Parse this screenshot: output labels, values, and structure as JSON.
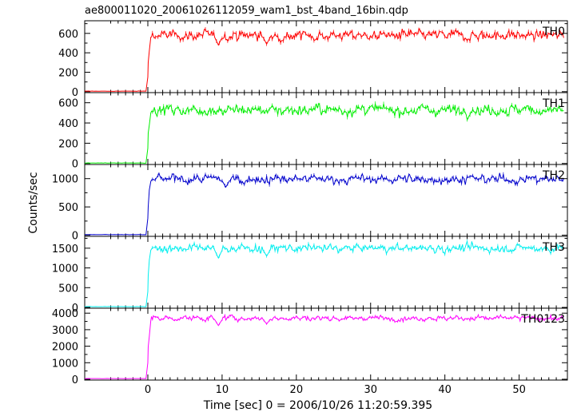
{
  "chart_data": {
    "type": "line",
    "title": "ae800011020_20061026112059_wam1_bst_4band_16bin.qdp",
    "xlabel": "Time [sec] 0 = 2006/10/26 11:20:59.395",
    "ylabel": "Counts/sec",
    "xlim": [
      -8.5,
      56.5
    ],
    "x_ticks": [
      0,
      10,
      20,
      30,
      40,
      50
    ],
    "x_tick_labels": [
      "0",
      "10",
      "20",
      "30",
      "40",
      "50"
    ],
    "grid": false,
    "legend": "none",
    "series": [
      {
        "name": "TH0",
        "color": "#ff0000",
        "ylim": [
          -10,
          730
        ],
        "yticks": [
          0,
          200,
          400,
          600
        ],
        "ytick_labels": [
          "0",
          "200",
          "400",
          "600"
        ],
        "pre_burst_level": 5,
        "rise_points": [
          [
            0.0,
            150
          ],
          [
            0.05,
            300
          ],
          [
            0.2,
            420
          ],
          [
            0.4,
            560
          ]
        ],
        "plateau_mean": 580,
        "plateau_noise": 45,
        "dip_points": [
          [
            9.5,
            480
          ],
          [
            16.0,
            490
          ]
        ],
        "sample_points": [
          [
            -5,
            5
          ],
          [
            0,
            5
          ],
          [
            0.5,
            600
          ],
          [
            5,
            600
          ],
          [
            10,
            560
          ],
          [
            15,
            590
          ],
          [
            20,
            610
          ],
          [
            25,
            600
          ],
          [
            30,
            570
          ],
          [
            35,
            590
          ],
          [
            40,
            560
          ],
          [
            45,
            580
          ],
          [
            50,
            570
          ],
          [
            55,
            590
          ]
        ]
      },
      {
        "name": "TH1",
        "color": "#00ee00",
        "ylim": [
          -10,
          700
        ],
        "yticks": [
          0,
          200,
          400,
          600
        ],
        "ytick_labels": [
          "0",
          "200",
          "400",
          "600"
        ],
        "pre_burst_level": 5,
        "rise_points": [
          [
            0.0,
            150
          ],
          [
            0.05,
            300
          ],
          [
            0.2,
            380
          ],
          [
            0.4,
            500
          ]
        ],
        "plateau_mean": 530,
        "plateau_noise": 45,
        "dip_points": [],
        "sample_points": [
          [
            -5,
            5
          ],
          [
            0,
            5
          ],
          [
            0.5,
            550
          ],
          [
            5,
            560
          ],
          [
            10,
            530
          ],
          [
            15,
            540
          ],
          [
            20,
            560
          ],
          [
            25,
            520
          ],
          [
            30,
            540
          ],
          [
            35,
            530
          ],
          [
            40,
            560
          ],
          [
            45,
            520
          ],
          [
            50,
            550
          ],
          [
            55,
            530
          ]
        ]
      },
      {
        "name": "TH2",
        "color": "#0000cc",
        "ylim": [
          -20,
          1250
        ],
        "yticks": [
          0,
          500,
          1000
        ],
        "ytick_labels": [
          "0",
          "500",
          "1000"
        ],
        "pre_burst_level": 10,
        "rise_points": [
          [
            0.0,
            300
          ],
          [
            0.05,
            500
          ],
          [
            0.2,
            800
          ],
          [
            0.4,
            950
          ]
        ],
        "plateau_mean": 990,
        "plateau_noise": 70,
        "dip_points": [
          [
            10.5,
            850
          ]
        ],
        "sample_points": [
          [
            -5,
            10
          ],
          [
            0,
            10
          ],
          [
            0.5,
            1000
          ],
          [
            5,
            1010
          ],
          [
            10,
            950
          ],
          [
            15,
            990
          ],
          [
            20,
            1020
          ],
          [
            25,
            980
          ],
          [
            30,
            1000
          ],
          [
            35,
            970
          ],
          [
            40,
            990
          ],
          [
            45,
            1000
          ],
          [
            50,
            980
          ],
          [
            55,
            1000
          ]
        ]
      },
      {
        "name": "TH3",
        "color": "#00eeee",
        "ylim": [
          -20,
          1800
        ],
        "yticks": [
          0,
          500,
          1000,
          1500
        ],
        "ytick_labels": [
          "0",
          "500",
          "1000",
          "1500"
        ],
        "pre_burst_level": 20,
        "rise_points": [
          [
            0.0,
            400
          ],
          [
            0.05,
            800
          ],
          [
            0.2,
            1200
          ],
          [
            0.4,
            1450
          ]
        ],
        "plateau_mean": 1500,
        "plateau_noise": 90,
        "dip_points": [
          [
            9.5,
            1250
          ],
          [
            16.0,
            1300
          ]
        ],
        "sample_points": [
          [
            -5,
            20
          ],
          [
            0,
            20
          ],
          [
            0.5,
            1550
          ],
          [
            5,
            1520
          ],
          [
            10,
            1400
          ],
          [
            15,
            1500
          ],
          [
            20,
            1520
          ],
          [
            25,
            1490
          ],
          [
            30,
            1500
          ],
          [
            35,
            1480
          ],
          [
            40,
            1500
          ],
          [
            45,
            1490
          ],
          [
            50,
            1510
          ],
          [
            55,
            1500
          ]
        ]
      },
      {
        "name": "TH0123",
        "color": "#ff00ff",
        "ylim": [
          -50,
          4300
        ],
        "yticks": [
          0,
          1000,
          2000,
          3000,
          4000
        ],
        "ytick_labels": [
          "0",
          "1000",
          "2000",
          "3000",
          "4000"
        ],
        "pre_burst_level": 40,
        "rise_points": [
          [
            0.0,
            1000
          ],
          [
            0.05,
            1950
          ],
          [
            0.2,
            2600
          ],
          [
            0.4,
            3550
          ]
        ],
        "plateau_mean": 3700,
        "plateau_noise": 140,
        "dip_points": [
          [
            9.5,
            3250
          ],
          [
            16.0,
            3350
          ]
        ],
        "sample_points": [
          [
            -5,
            40
          ],
          [
            0,
            40
          ],
          [
            0.5,
            3700
          ],
          [
            5,
            3720
          ],
          [
            10,
            3550
          ],
          [
            15,
            3650
          ],
          [
            20,
            3750
          ],
          [
            25,
            3700
          ],
          [
            30,
            3720
          ],
          [
            35,
            3680
          ],
          [
            40,
            3700
          ],
          [
            45,
            3690
          ],
          [
            50,
            3710
          ],
          [
            55,
            3700
          ]
        ]
      }
    ]
  }
}
